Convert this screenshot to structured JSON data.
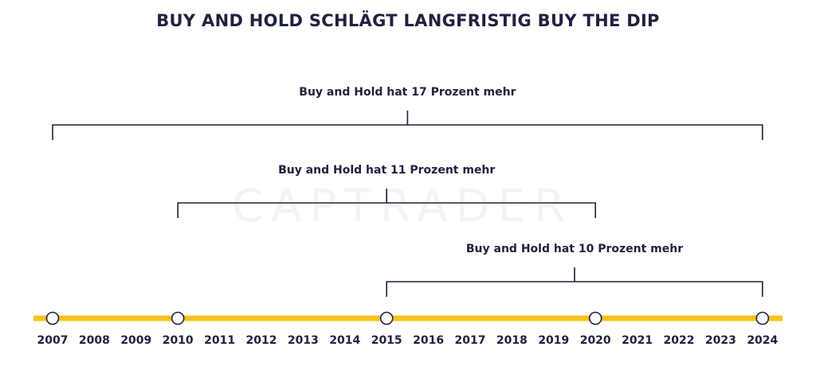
{
  "title": "BUY AND HOLD SCHLÄGT LANGFRISTIG BUY THE DIP",
  "watermark": "CAPTRADER",
  "colors": {
    "timeline": "#f6c31b",
    "text": "#1f2140",
    "bracket": "#1f2140",
    "marker_fill": "#ffffff"
  },
  "years": [
    "2007",
    "2008",
    "2009",
    "2010",
    "2011",
    "2012",
    "2013",
    "2014",
    "2015",
    "2016",
    "2017",
    "2018",
    "2019",
    "2020",
    "2021",
    "2022",
    "2023",
    "2024"
  ],
  "markers": [
    "2007",
    "2010",
    "2015",
    "2020",
    "2024"
  ],
  "brackets": [
    {
      "from": "2007",
      "to": "2024",
      "label": "Buy and Hold hat 17 Prozent mehr"
    },
    {
      "from": "2010",
      "to": "2020",
      "label": "Buy and Hold hat 11 Prozent mehr"
    },
    {
      "from": "2015",
      "to": "2024",
      "label": "Buy and Hold hat 10 Prozent mehr"
    }
  ]
}
